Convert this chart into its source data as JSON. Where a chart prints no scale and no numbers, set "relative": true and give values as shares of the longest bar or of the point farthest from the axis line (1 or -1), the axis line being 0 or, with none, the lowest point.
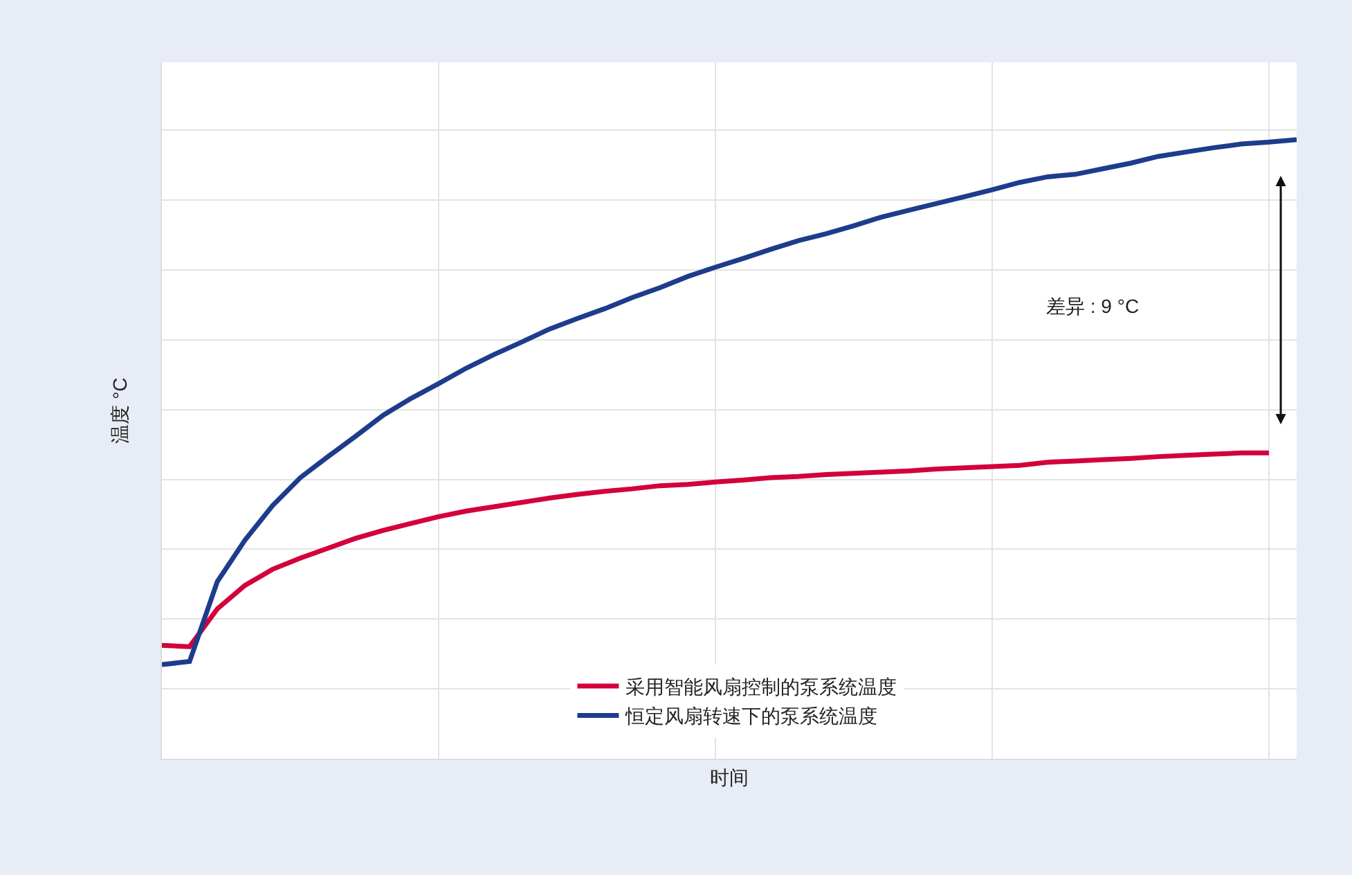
{
  "chart_data": {
    "type": "line",
    "relative": true,
    "xlabel": "时间",
    "ylabel": "温度 °C",
    "grid": true,
    "legend": "bottom",
    "line_style": "solid",
    "marker": "none",
    "annotations": [
      "差异 : 9 °C"
    ],
    "categories": [
      null,
      null,
      null,
      null,
      null,
      null,
      null,
      null,
      null,
      null,
      null,
      null,
      null,
      null,
      null,
      null,
      null,
      null,
      null,
      null,
      null,
      null,
      null,
      null,
      null,
      null,
      null,
      null,
      null,
      null,
      null,
      null,
      null,
      null,
      null,
      null,
      null,
      null,
      null,
      null,
      null,
      null
    ],
    "series": [
      {
        "name": "采用智能风扇控制的泵系统温度",
        "color": "#d4003a",
        "values": [
          0.183,
          0.181,
          0.242,
          0.28,
          0.306,
          0.324,
          0.34,
          0.356,
          0.369,
          0.38,
          0.391,
          0.4,
          0.407,
          0.414,
          0.421,
          0.427,
          0.432,
          0.436,
          0.441,
          0.443,
          0.447,
          0.45,
          0.454,
          0.456,
          0.459,
          0.461,
          0.463,
          0.465,
          0.468,
          0.47,
          0.472,
          0.474,
          0.479,
          0.481,
          0.483,
          0.485,
          0.488,
          0.49,
          0.492,
          0.494,
          0.494,
          null
        ]
      },
      {
        "name": "恒定风扇转速下的泵系统温度",
        "color": "#1e3c8c",
        "values": [
          0.152,
          0.157,
          0.286,
          0.353,
          0.409,
          0.454,
          0.488,
          0.521,
          0.555,
          0.582,
          0.606,
          0.631,
          0.653,
          0.673,
          0.694,
          0.711,
          0.727,
          0.745,
          0.761,
          0.779,
          0.794,
          0.808,
          0.823,
          0.837,
          0.848,
          0.861,
          0.875,
          0.886,
          0.897,
          0.908,
          0.919,
          0.931,
          0.94,
          0.944,
          0.953,
          0.962,
          0.973,
          0.98,
          0.987,
          0.993,
          0.996,
          1
        ]
      }
    ]
  }
}
